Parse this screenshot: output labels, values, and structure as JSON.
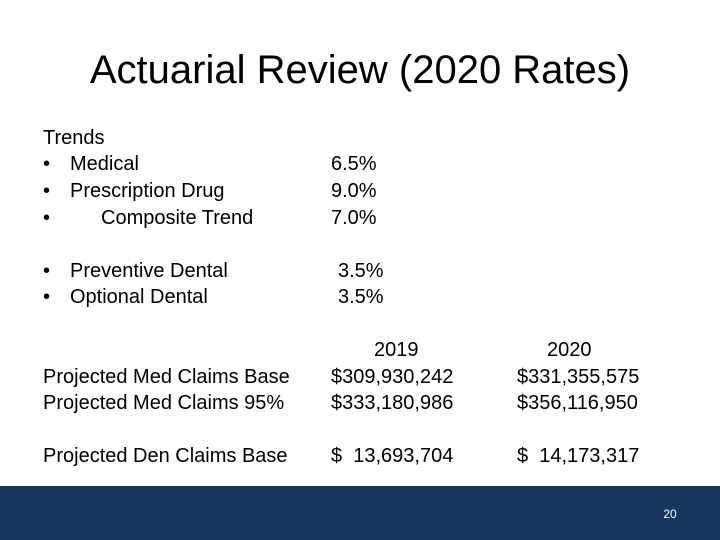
{
  "slide": {
    "title": "Actuarial Review (2020 Rates)",
    "page_number": "20"
  },
  "trends": {
    "heading": "Trends",
    "bullet_glyph": "•",
    "items": [
      {
        "label": "Medical",
        "value": "6.5%"
      },
      {
        "label": "Prescription Drug",
        "value": "9.0%"
      },
      {
        "label": "Composite Trend",
        "value": "7.0%"
      }
    ],
    "dental": [
      {
        "label": "Preventive Dental",
        "value": "3.5%"
      },
      {
        "label": "Optional Dental",
        "value": "3.5%"
      }
    ]
  },
  "claims": {
    "years": [
      "2019",
      "2020"
    ],
    "rows": [
      {
        "label": "Projected Med Claims Base",
        "v2019": "$309,930,242",
        "v2020": "$331,355,575"
      },
      {
        "label": "Projected Med Claims 95%",
        "v2019": "$333,180,986",
        "v2020": "$356,116,950"
      },
      {
        "label": "Projected Den Claims Base",
        "v2019": "$  13,693,704",
        "v2020": "$  14,173,317"
      }
    ]
  }
}
